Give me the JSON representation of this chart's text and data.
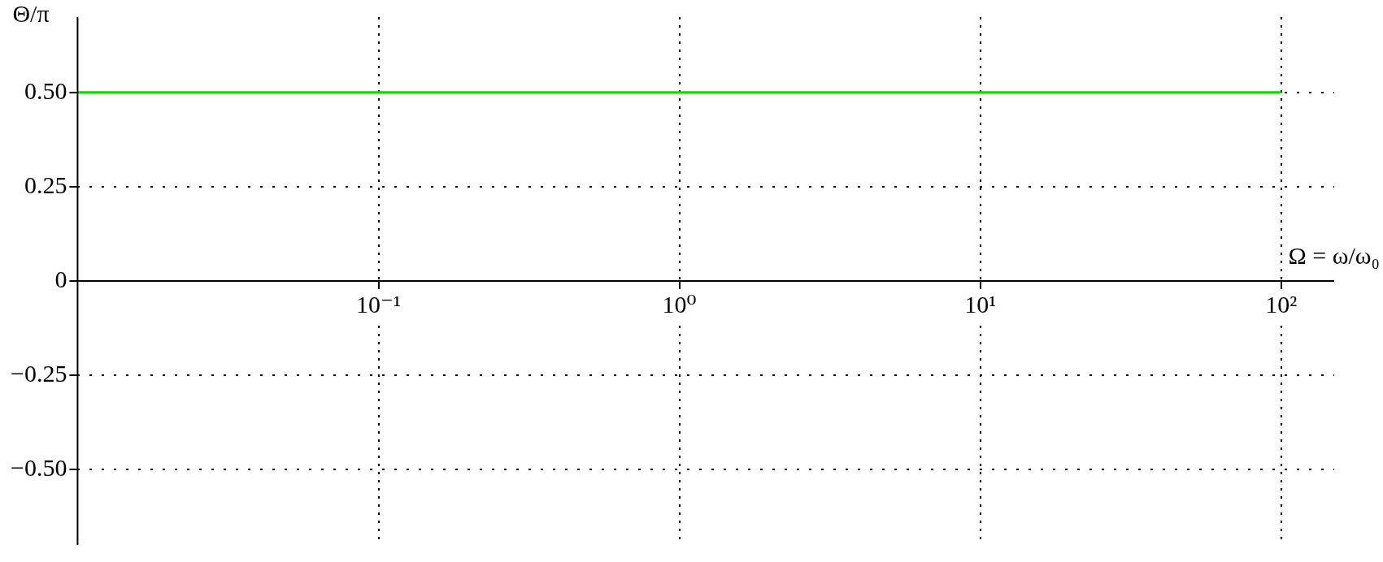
{
  "chart_data": {
    "type": "line",
    "xlabel": "Ω = ω/ω₀",
    "ylabel": "Θ/π",
    "log": "x",
    "grid": true,
    "marker": "none",
    "x": [
      0.01,
      100
    ],
    "series": [
      {
        "color": "#00e000",
        "values": [
          0.5,
          0.5
        ]
      }
    ],
    "xlim": [
      0.01,
      150
    ],
    "ylim": [
      -0.7,
      0.7
    ],
    "xticks": [
      {
        "value": 0.1,
        "label": "10⁻¹"
      },
      {
        "value": 1,
        "label": "10⁰"
      },
      {
        "value": 10,
        "label": "10¹"
      },
      {
        "value": 100,
        "label": "10²"
      }
    ],
    "yticks": [
      {
        "value": -0.5,
        "label": "−0.50"
      },
      {
        "value": -0.25,
        "label": "−0.25"
      },
      0,
      {
        "value": 0.25,
        "label": "0.25"
      },
      {
        "value": 0.5,
        "label": "0.50"
      }
    ]
  }
}
